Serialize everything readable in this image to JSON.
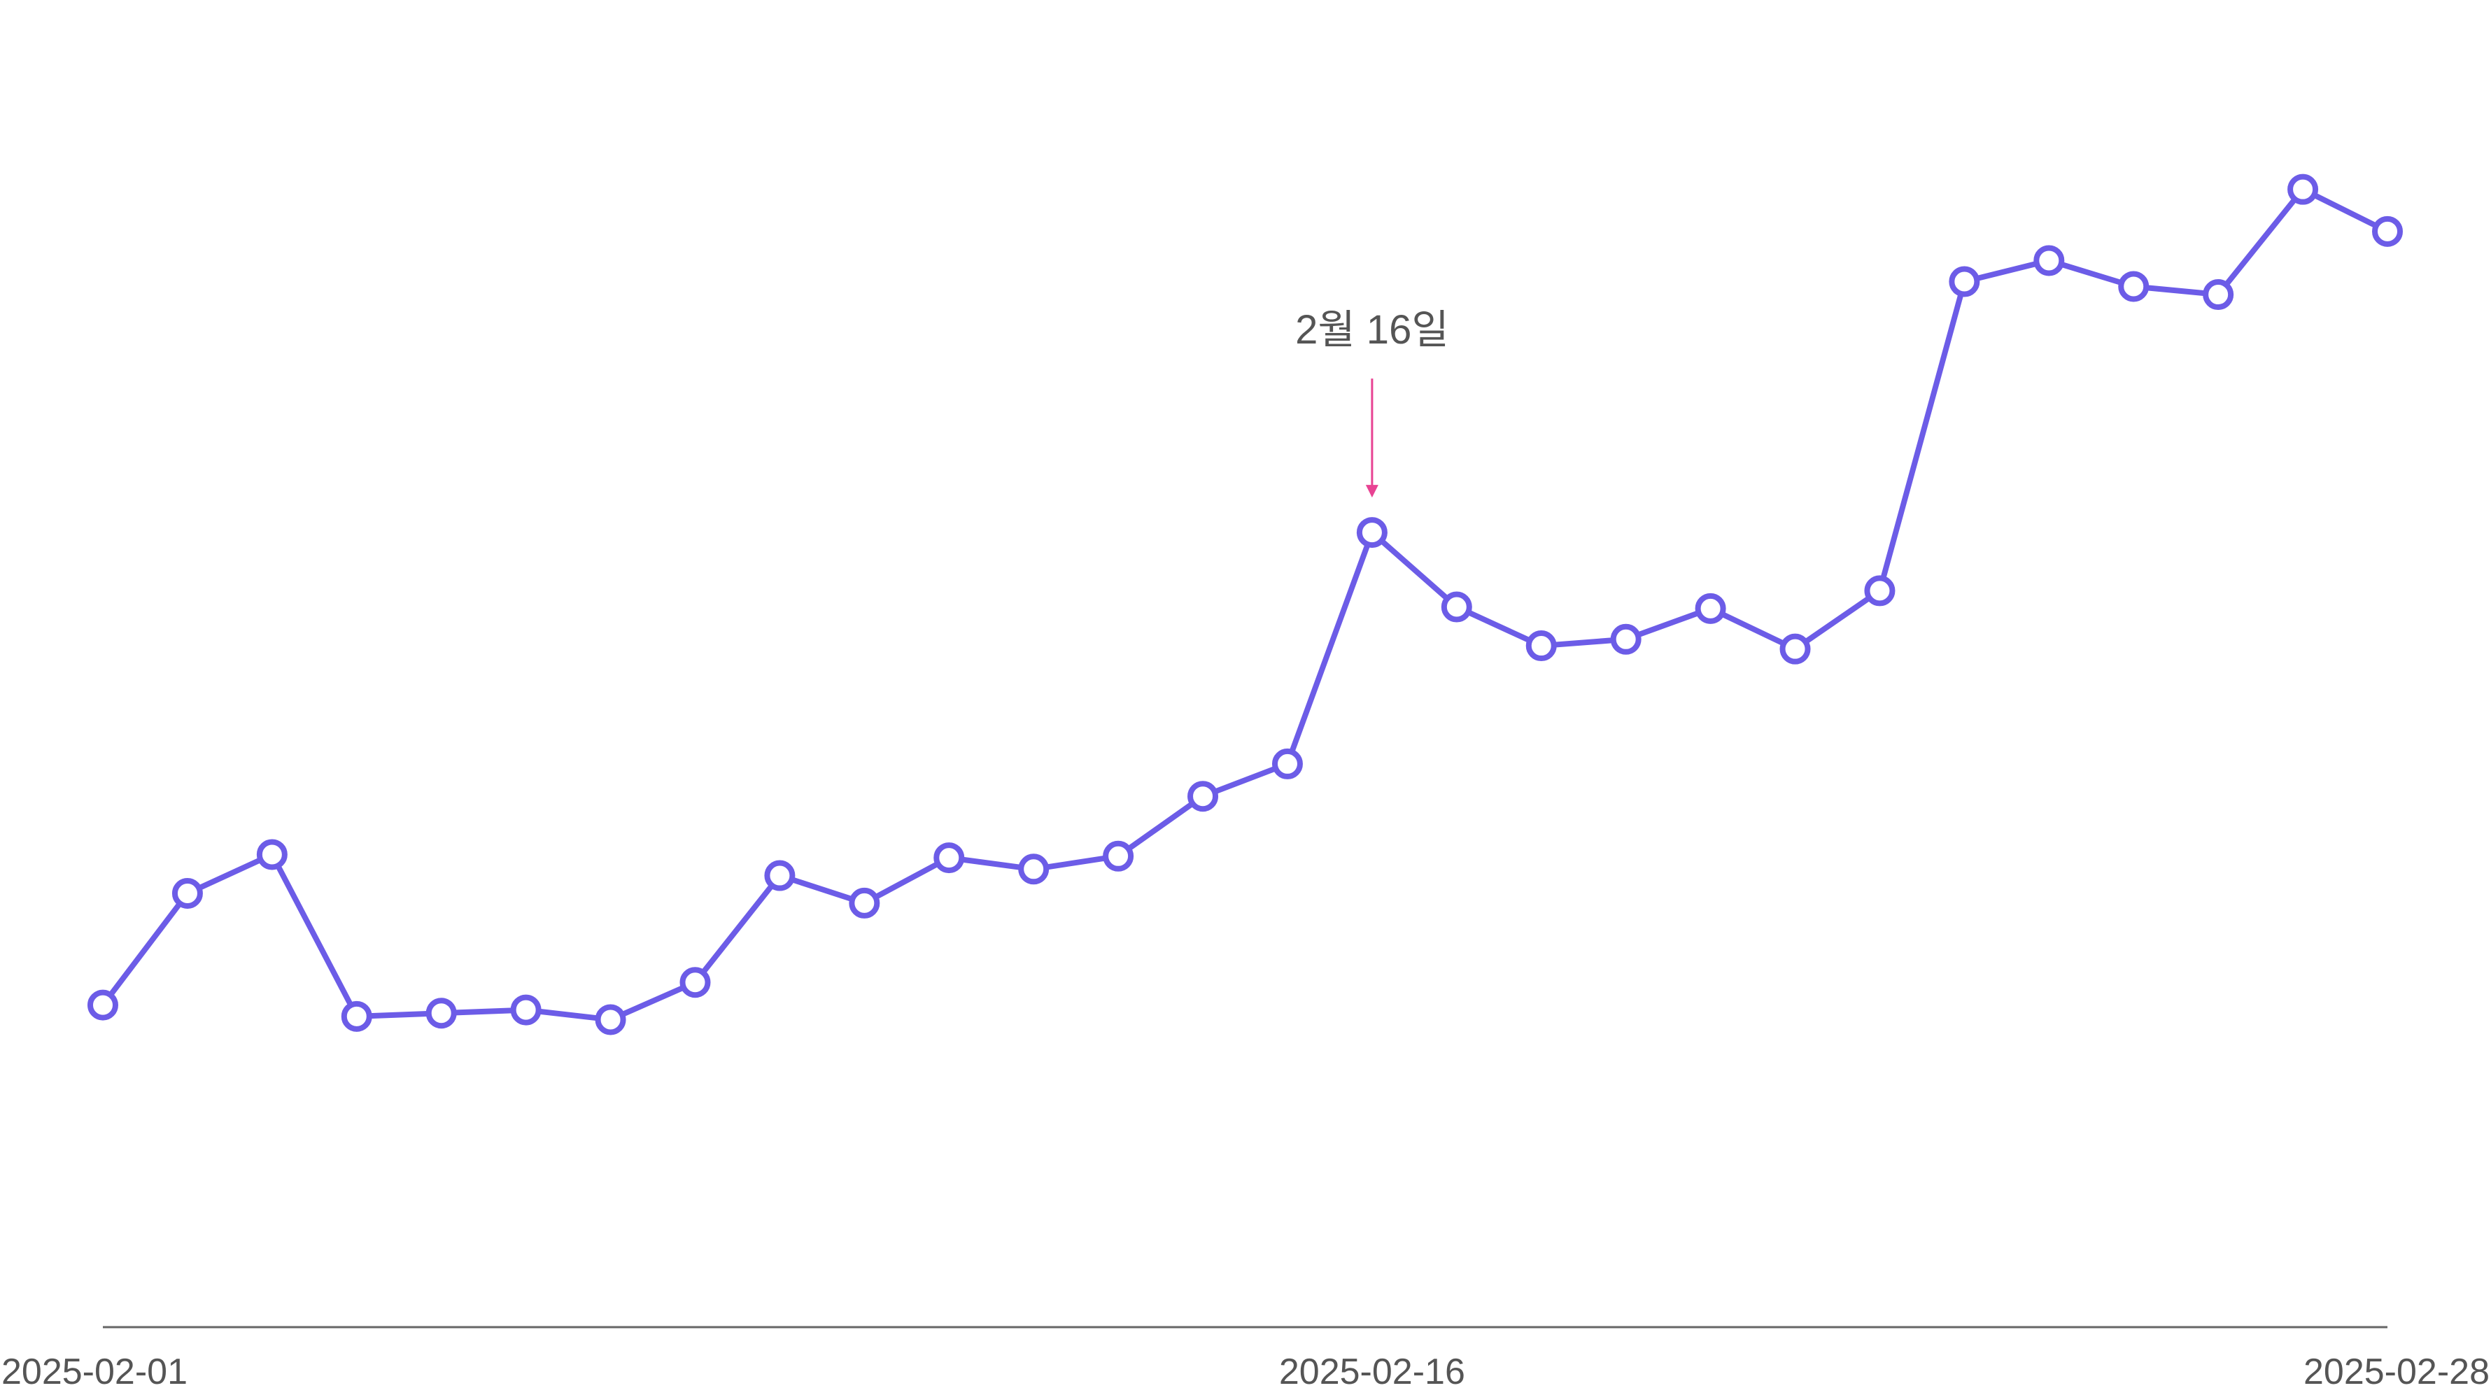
{
  "chart_data": {
    "type": "line",
    "title": "",
    "xlabel": "",
    "ylabel": "",
    "x": [
      "2025-02-01",
      "2025-02-02",
      "2025-02-03",
      "2025-02-04",
      "2025-02-05",
      "2025-02-06",
      "2025-02-07",
      "2025-02-08",
      "2025-02-09",
      "2025-02-10",
      "2025-02-11",
      "2025-02-12",
      "2025-02-13",
      "2025-02-14",
      "2025-02-15",
      "2025-02-16",
      "2025-02-17",
      "2025-02-18",
      "2025-02-19",
      "2025-02-20",
      "2025-02-21",
      "2025-02-22",
      "2025-02-23",
      "2025-02-24",
      "2025-02-25",
      "2025-02-26",
      "2025-02-27",
      "2025-02-28"
    ],
    "series": [
      {
        "name": "",
        "color": "#6c5ce7",
        "values": [
          37.9,
          44.8,
          47.2,
          37.2,
          37.4,
          37.6,
          37.0,
          39.3,
          45.9,
          44.2,
          47.0,
          46.3,
          47.1,
          50.8,
          52.8,
          67.1,
          62.5,
          60.1,
          60.5,
          62.4,
          59.9,
          63.5,
          82.6,
          83.9,
          82.3,
          81.8,
          88.3,
          85.7
        ]
      }
    ],
    "x_ticks": [
      "2025-02-01",
      "2025-02-16",
      "2025-02-28"
    ],
    "ylim": [
      18,
      100
    ],
    "grid": false,
    "legend": "none",
    "annotation": {
      "text": "2월 16일",
      "x": "2025-02-16",
      "arrow_color": "#e84393"
    },
    "axis_color": "#666666"
  }
}
